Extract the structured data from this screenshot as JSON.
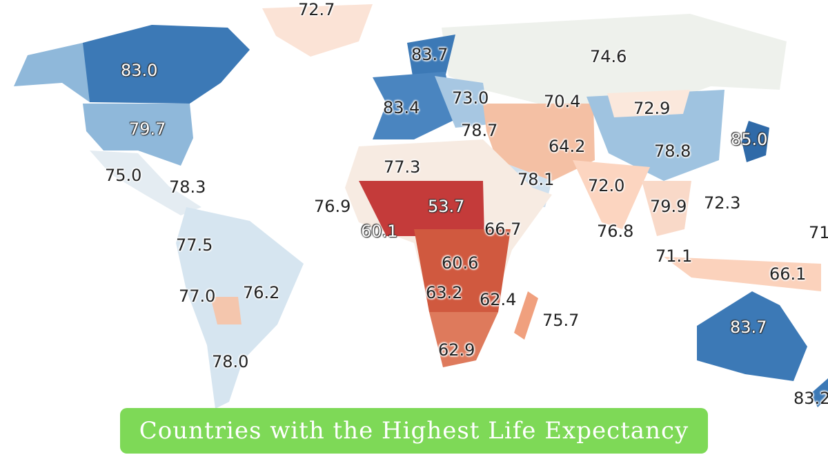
{
  "title": "Countries with the Highest Life Expectancy",
  "map": {
    "type": "choropleth",
    "color_scale": {
      "low": "#b2182b",
      "mid": "#f7f0ea",
      "high": "#2c6bb0"
    },
    "labels": [
      "72.7",
      "83.7",
      "74.6",
      "83.0",
      "70.4",
      "83.4",
      "73.0",
      "72.9",
      "79.7",
      "78.7",
      "64.2",
      "85.0",
      "78.8",
      "77.3",
      "75.0",
      "78.3",
      "78.1",
      "72.0",
      "76.9",
      "53.7",
      "79.9",
      "72.3",
      "60.1",
      "66.7",
      "76.8",
      "71",
      "77.5",
      "60.6",
      "71.1",
      "66.1",
      "77.0",
      "76.2",
      "63.2",
      "62.4",
      "75.7",
      "83.7",
      "78.0",
      "62.9",
      "83.2"
    ]
  }
}
